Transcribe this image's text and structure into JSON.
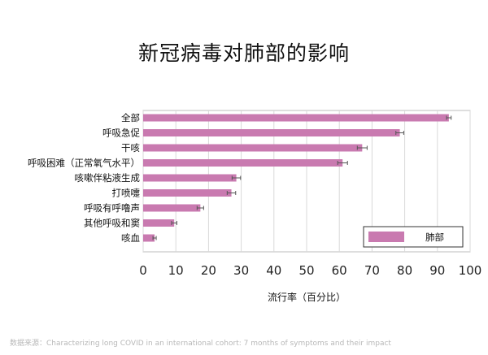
{
  "chart_data": {
    "type": "bar",
    "orientation": "horizontal",
    "title": "新冠病毒对肺部的影响",
    "xlabel": "流行率（百分比）",
    "ylabel": "",
    "xlim": [
      0,
      100
    ],
    "xticks": [
      0,
      10,
      20,
      30,
      40,
      50,
      60,
      70,
      80,
      90,
      100
    ],
    "grid": true,
    "legend_position": "bottom-right",
    "categories": [
      "全部",
      "呼吸急促",
      "干咳",
      "呼吸困难（正常氧气水平）",
      "咳嗽伴粘液生成",
      "打喷嚏",
      "呼吸有呼噜声",
      "其他呼吸和窦",
      "咳血"
    ],
    "series": [
      {
        "name": "肺部",
        "color": "#c97ab0",
        "values": [
          93.5,
          78.5,
          67,
          61,
          28.5,
          27,
          17.5,
          9.5,
          3.5
        ],
        "error": [
          0.7,
          1.2,
          1.5,
          1.5,
          1.3,
          1.3,
          1.0,
          0.8,
          0.5
        ]
      }
    ]
  },
  "source_text": "数据来源：Characterizing long COVID in an international cohort: 7 months of symptoms and their impact"
}
